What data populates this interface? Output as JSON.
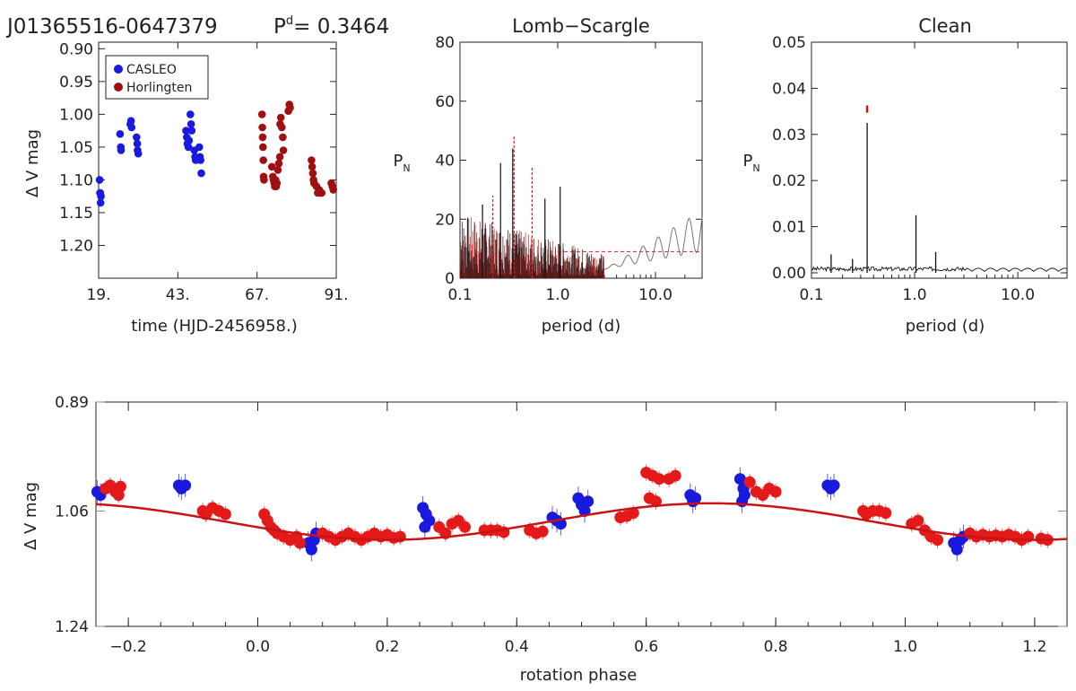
{
  "header": {
    "object": "J01365516-0647379",
    "period_label": "P",
    "period_sup": "d",
    "period_value": "= 0.3464"
  },
  "colors": {
    "casleo": "#1a1adf",
    "horlington": "#a01010",
    "phase_red": "#e41a1a",
    "fit_line": "#c81414",
    "black": "#111111",
    "gray": "#777777"
  },
  "chart_data": [
    {
      "id": "lightcurve",
      "type": "scatter",
      "title": "",
      "xlabel": "time (HJD-2456958.)",
      "ylabel": "Δ V mag",
      "xlim": [
        19,
        91
      ],
      "ylim": [
        1.25,
        0.89
      ],
      "x_ticks": [
        19,
        43,
        67,
        91
      ],
      "x_tick_labels": [
        "19.",
        "43.",
        "67.",
        "91."
      ],
      "y_ticks": [
        0.9,
        0.95,
        1.0,
        1.05,
        1.1,
        1.15,
        1.2
      ],
      "y_tick_labels": [
        "0.90",
        "0.95",
        "1.00",
        "1.05",
        "1.10",
        "1.15",
        "1.20"
      ],
      "legend_position": "top-left",
      "series": [
        {
          "name": "CASLEO",
          "color": "#1a1adf",
          "points": [
            [
              19.3,
              1.1
            ],
            [
              19.5,
              1.12
            ],
            [
              19.6,
              1.135
            ],
            [
              19.4,
              1.12
            ],
            [
              19.7,
              1.125
            ],
            [
              25.5,
              1.03
            ],
            [
              25.7,
              1.05
            ],
            [
              25.8,
              1.055
            ],
            [
              28.6,
              1.015
            ],
            [
              28.8,
              1.01
            ],
            [
              29.0,
              1.02
            ],
            [
              30.5,
              1.035
            ],
            [
              30.7,
              1.045
            ],
            [
              30.8,
              1.055
            ],
            [
              31.0,
              1.06
            ],
            [
              45.5,
              1.025
            ],
            [
              45.7,
              1.035
            ],
            [
              45.9,
              1.045
            ],
            [
              46.2,
              1.05
            ],
            [
              46.4,
              1.04
            ],
            [
              46.8,
              1.0
            ],
            [
              47.0,
              1.015
            ],
            [
              47.2,
              1.025
            ],
            [
              48.0,
              1.055
            ],
            [
              48.2,
              1.065
            ],
            [
              48.4,
              1.07
            ],
            [
              49.5,
              1.05
            ],
            [
              49.7,
              1.065
            ],
            [
              49.9,
              1.07
            ],
            [
              50.1,
              1.09
            ]
          ]
        },
        {
          "name": "Horlingten",
          "color": "#a01010",
          "points": [
            [
              68.5,
              1.0
            ],
            [
              68.6,
              1.02
            ],
            [
              68.7,
              1.035
            ],
            [
              68.8,
              1.05
            ],
            [
              68.9,
              1.07
            ],
            [
              69.0,
              1.095
            ],
            [
              69.1,
              1.1
            ],
            [
              71.5,
              1.08
            ],
            [
              71.8,
              1.095
            ],
            [
              72.0,
              1.1
            ],
            [
              72.2,
              1.105
            ],
            [
              72.4,
              1.11
            ],
            [
              72.6,
              1.1
            ],
            [
              72.8,
              1.11
            ],
            [
              73.0,
              1.105
            ],
            [
              73.3,
              1.085
            ],
            [
              73.6,
              1.075
            ],
            [
              73.9,
              1.065
            ],
            [
              74.0,
              1.015
            ],
            [
              74.2,
              1.005
            ],
            [
              74.5,
              1.02
            ],
            [
              74.8,
              1.035
            ],
            [
              75.0,
              1.055
            ],
            [
              76.5,
              0.995
            ],
            [
              76.8,
              0.985
            ],
            [
              77.0,
              0.99
            ],
            [
              83.5,
              1.07
            ],
            [
              83.7,
              1.08
            ],
            [
              83.9,
              1.09
            ],
            [
              84.1,
              1.1
            ],
            [
              84.3,
              1.105
            ],
            [
              85.0,
              1.11
            ],
            [
              85.4,
              1.12
            ],
            [
              85.8,
              1.115
            ],
            [
              86.2,
              1.12
            ],
            [
              86.6,
              1.12
            ],
            [
              89.5,
              1.105
            ],
            [
              89.8,
              1.11
            ],
            [
              90.1,
              1.115
            ]
          ]
        }
      ]
    },
    {
      "id": "lomb_scargle",
      "type": "line",
      "title": "Lomb−Scargle",
      "xlabel": "period (d)",
      "ylabel": "P",
      "ylabel_sub": "N",
      "x_scale": "log",
      "xlim": [
        0.1,
        30
      ],
      "ylim": [
        0,
        80
      ],
      "x_ticks": [
        0.1,
        1.0,
        10.0
      ],
      "x_tick_labels": [
        "0.1",
        "1.0",
        "10.0"
      ],
      "y_ticks": [
        0,
        20,
        40,
        60,
        80
      ],
      "y_tick_labels": [
        "0",
        "20",
        "40",
        "60",
        "80"
      ],
      "peaks": [
        {
          "period": 0.3464,
          "power": 44,
          "color": "#111111"
        },
        {
          "period": 0.3464,
          "power": 48,
          "color": "#e41a1a"
        },
        {
          "period": 0.53,
          "power": 38,
          "color": "#e41a1a"
        },
        {
          "period": 0.26,
          "power": 39,
          "color": "#111111"
        },
        {
          "period": 1.06,
          "power": 31,
          "color": "#111111"
        },
        {
          "period": 0.21,
          "power": 28,
          "color": "#e41a1a"
        },
        {
          "period": 0.74,
          "power": 27,
          "color": "#111111"
        },
        {
          "period": 0.17,
          "power": 25,
          "color": "#111111"
        }
      ],
      "threshold": 9
    },
    {
      "id": "clean",
      "type": "line",
      "title": "Clean",
      "xlabel": "period (d)",
      "ylabel": "P",
      "ylabel_sub": "N",
      "x_scale": "log",
      "xlim": [
        0.1,
        30
      ],
      "ylim": [
        0,
        0.05
      ],
      "x_ticks": [
        0.1,
        1.0,
        10.0
      ],
      "x_tick_labels": [
        "0.1",
        "1.0",
        "10.0"
      ],
      "y_ticks": [
        0,
        0.01,
        0.02,
        0.03,
        0.04,
        0.05
      ],
      "y_tick_labels": [
        "0.00",
        "0.01",
        "0.02",
        "0.03",
        "0.04",
        "0.05"
      ],
      "peaks": [
        {
          "period": 0.3464,
          "power": 0.0325
        },
        {
          "period": 1.03,
          "power": 0.0125
        },
        {
          "period": 1.6,
          "power": 0.0045
        },
        {
          "period": 0.155,
          "power": 0.004
        },
        {
          "period": 0.25,
          "power": 0.003
        }
      ],
      "marker_period": 0.3464,
      "marker_power": 0.0355
    },
    {
      "id": "phase_curve",
      "type": "scatter",
      "title": "",
      "xlabel": "rotation phase",
      "ylabel": "Δ V mag",
      "xlim": [
        -0.25,
        1.25
      ],
      "ylim": [
        1.24,
        0.89
      ],
      "x_ticks": [
        -0.2,
        0.0,
        0.2,
        0.4,
        0.6,
        0.8,
        1.0,
        1.2
      ],
      "x_tick_labels": [
        "−0.2",
        "0.0",
        "0.2",
        "0.4",
        "0.6",
        "0.8",
        "1.0",
        "1.2"
      ],
      "y_ticks": [
        0.89,
        1.06,
        1.24
      ],
      "y_tick_labels": [
        "0.89",
        "1.06",
        "1.24"
      ],
      "fit": {
        "mean": 1.0765,
        "amplitude": 0.0285,
        "phase_of_min_mag": 0.7
      },
      "series": [
        {
          "name": "CASLEO",
          "color": "#1a1adf",
          "points": [
            [
              -0.248,
              1.03
            ],
            [
              -0.243,
              1.035
            ],
            [
              -0.122,
              1.02
            ],
            [
              -0.118,
              1.025
            ],
            [
              -0.112,
              1.02
            ],
            [
              0.078,
              1.11
            ],
            [
              0.083,
              1.12
            ],
            [
              0.087,
              1.105
            ],
            [
              0.09,
              1.095
            ],
            [
              0.255,
              1.055
            ],
            [
              0.26,
              1.065
            ],
            [
              0.265,
              1.075
            ],
            [
              0.258,
              1.085
            ],
            [
              0.455,
              1.07
            ],
            [
              0.462,
              1.075
            ],
            [
              0.468,
              1.08
            ],
            [
              0.495,
              1.04
            ],
            [
              0.5,
              1.05
            ],
            [
              0.505,
              1.06
            ],
            [
              0.51,
              1.045
            ],
            [
              0.668,
              1.035
            ],
            [
              0.672,
              1.045
            ],
            [
              0.676,
              1.04
            ],
            [
              0.745,
              1.01
            ],
            [
              0.75,
              1.025
            ],
            [
              0.752,
              1.035
            ],
            [
              0.748,
              1.045
            ],
            [
              0.88,
              1.02
            ],
            [
              0.885,
              1.025
            ],
            [
              0.89,
              1.02
            ],
            [
              1.075,
              1.11
            ],
            [
              1.08,
              1.12
            ],
            [
              1.085,
              1.105
            ],
            [
              1.09,
              1.1
            ]
          ]
        },
        {
          "name": "Horlingten",
          "color": "#e41a1a",
          "points": [
            [
              -0.235,
              1.025
            ],
            [
              -0.228,
              1.02
            ],
            [
              -0.22,
              1.03
            ],
            [
              -0.215,
              1.035
            ],
            [
              -0.212,
              1.022
            ],
            [
              -0.085,
              1.06
            ],
            [
              -0.08,
              1.065
            ],
            [
              -0.07,
              1.055
            ],
            [
              -0.06,
              1.06
            ],
            [
              -0.05,
              1.065
            ],
            [
              0.01,
              1.065
            ],
            [
              0.015,
              1.075
            ],
            [
              0.02,
              1.085
            ],
            [
              0.025,
              1.09
            ],
            [
              0.03,
              1.095
            ],
            [
              0.04,
              1.1
            ],
            [
              0.05,
              1.105
            ],
            [
              0.06,
              1.1
            ],
            [
              0.065,
              1.11
            ],
            [
              0.1,
              1.095
            ],
            [
              0.11,
              1.1
            ],
            [
              0.12,
              1.105
            ],
            [
              0.13,
              1.1
            ],
            [
              0.14,
              1.095
            ],
            [
              0.15,
              1.1
            ],
            [
              0.16,
              1.105
            ],
            [
              0.17,
              1.1
            ],
            [
              0.18,
              1.095
            ],
            [
              0.19,
              1.1
            ],
            [
              0.2,
              1.097
            ],
            [
              0.21,
              1.102
            ],
            [
              0.22,
              1.1
            ],
            [
              0.28,
              1.085
            ],
            [
              0.29,
              1.095
            ],
            [
              0.3,
              1.08
            ],
            [
              0.31,
              1.075
            ],
            [
              0.32,
              1.085
            ],
            [
              0.35,
              1.09
            ],
            [
              0.36,
              1.09
            ],
            [
              0.37,
              1.09
            ],
            [
              0.38,
              1.093
            ],
            [
              0.42,
              1.09
            ],
            [
              0.43,
              1.095
            ],
            [
              0.44,
              1.092
            ],
            [
              0.56,
              1.07
            ],
            [
              0.57,
              1.068
            ],
            [
              0.58,
              1.063
            ],
            [
              0.6,
              1.0
            ],
            [
              0.61,
              1.005
            ],
            [
              0.62,
              1.01
            ],
            [
              0.605,
              1.04
            ],
            [
              0.615,
              1.045
            ],
            [
              0.635,
              1.01
            ],
            [
              0.645,
              1.005
            ],
            [
              0.77,
              1.03
            ],
            [
              0.78,
              1.035
            ],
            [
              0.79,
              1.025
            ],
            [
              0.8,
              1.03
            ],
            [
              0.76,
              1.015
            ],
            [
              0.935,
              1.06
            ],
            [
              0.94,
              1.065
            ],
            [
              0.95,
              1.06
            ],
            [
              0.96,
              1.06
            ],
            [
              0.97,
              1.063
            ],
            [
              1.01,
              1.08
            ],
            [
              1.02,
              1.075
            ],
            [
              1.03,
              1.09
            ],
            [
              1.04,
              1.1
            ],
            [
              1.05,
              1.105
            ],
            [
              1.1,
              1.095
            ],
            [
              1.11,
              1.1
            ],
            [
              1.12,
              1.097
            ],
            [
              1.13,
              1.1
            ],
            [
              1.14,
              1.098
            ],
            [
              1.15,
              1.1
            ],
            [
              1.16,
              1.097
            ],
            [
              1.17,
              1.1
            ],
            [
              1.18,
              1.105
            ],
            [
              1.19,
              1.1
            ],
            [
              1.21,
              1.103
            ],
            [
              1.22,
              1.105
            ]
          ]
        }
      ]
    }
  ]
}
